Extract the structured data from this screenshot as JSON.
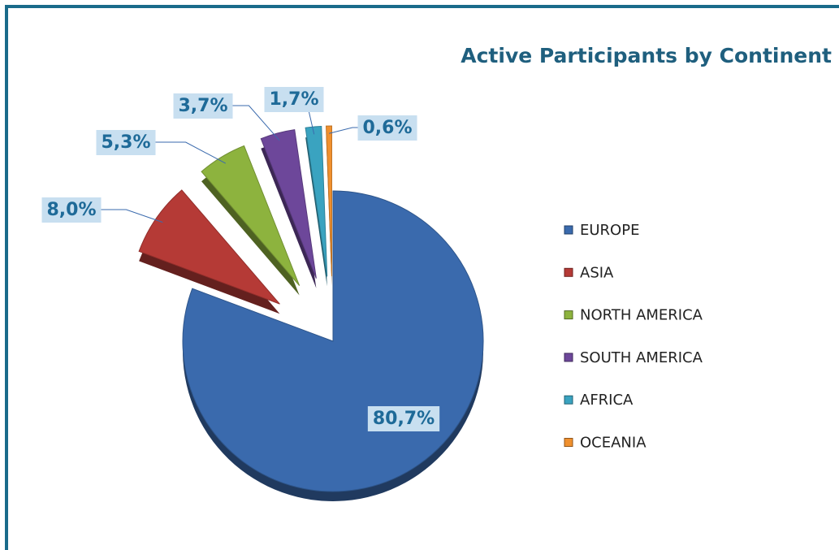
{
  "chart_data": {
    "type": "pie",
    "title": "Active Participants by Continent",
    "categories": [
      "EUROPE",
      "ASIA",
      "NORTH AMERICA",
      "SOUTH AMERICA",
      "AFRICA",
      "OCEANIA"
    ],
    "values": [
      80.7,
      8.0,
      5.3,
      3.7,
      1.7,
      0.6
    ],
    "value_labels": [
      "80,7%",
      "8,0%",
      "5,3%",
      "3,7%",
      "1,7%",
      "0,6%"
    ],
    "colors": [
      "#3a6aad",
      "#b53a36",
      "#8db33e",
      "#6d479a",
      "#3aa3c0",
      "#f0902e"
    ],
    "legend": "right"
  }
}
